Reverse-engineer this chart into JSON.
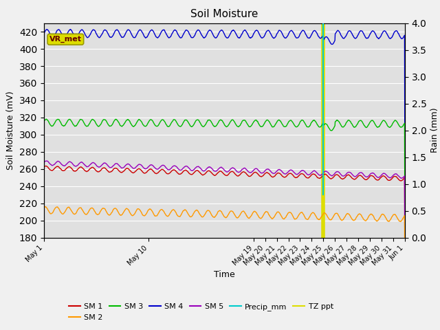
{
  "title": "Soil Moisture",
  "ylabel_left": "Soil Moisture (mV)",
  "ylabel_right": "Rain (mm)",
  "xlabel": "Time",
  "ylim_left": [
    180,
    430
  ],
  "ylim_right": [
    0.0,
    4.0
  ],
  "yticks_left": [
    180,
    200,
    220,
    240,
    260,
    280,
    300,
    320,
    340,
    360,
    380,
    400,
    420
  ],
  "yticks_right": [
    0.0,
    0.5,
    1.0,
    1.5,
    2.0,
    2.5,
    3.0,
    3.5,
    4.0
  ],
  "bg_color": "#e0e0e0",
  "fig_color": "#f0f0f0",
  "sm1_color": "#cc0000",
  "sm2_color": "#ff9900",
  "sm3_color": "#00bb00",
  "sm4_color": "#0000cc",
  "sm5_color": "#9900bb",
  "precip_color": "#00cccc",
  "tzppt_color": "#dddd00",
  "vr_met_box_color": "#dddd00",
  "vr_met_text_color": "#660000",
  "n_days": 31,
  "sm4_base": 418,
  "sm4_amp": 4.5,
  "sm4_freq": 1.0,
  "sm4_trend": -0.05,
  "sm3_base": 314,
  "sm3_amp": 4.0,
  "sm3_freq": 1.0,
  "sm3_trend": -0.05,
  "sm1_base": 261,
  "sm1_amp": 2.5,
  "sm1_freq": 1.0,
  "sm1_trend": -0.4,
  "sm5_base": 267,
  "sm5_amp": 2.5,
  "sm5_freq": 1.0,
  "sm5_trend": -0.5,
  "sm2_base": 212,
  "sm2_amp": 4.0,
  "sm2_freq": 1.0,
  "sm2_trend": -0.3,
  "precip_spike_day": 24,
  "tzppt_spike_day": 24,
  "xtick_positions": [
    0,
    9,
    18,
    19,
    20,
    21,
    22,
    23,
    24,
    25,
    26,
    27,
    28,
    29,
    30,
    31
  ],
  "xtick_labels": [
    "May 1",
    "May 10",
    "May 19",
    "May 20",
    "May 21",
    "May 22",
    "May 23",
    "May 24",
    "May 25",
    "May 26",
    "May 27",
    "May 28",
    "May 29",
    "May 30",
    "May 31",
    "Jun 1"
  ]
}
